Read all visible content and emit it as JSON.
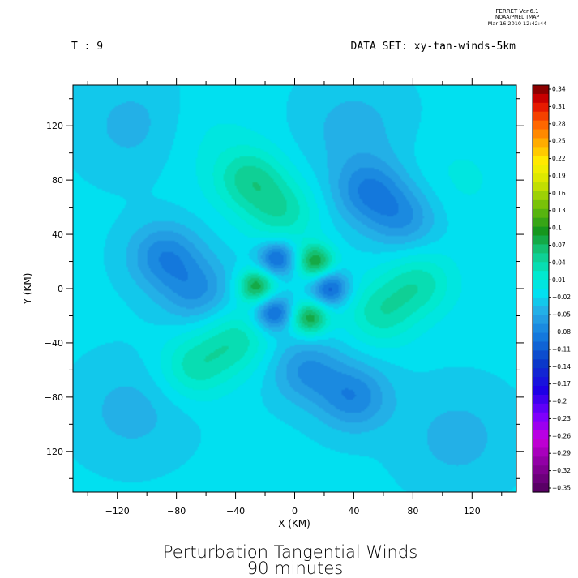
{
  "header": {
    "program": "FERRET  Ver.6.1",
    "org": "NOAA/PMEL TMAP",
    "timestamp": "Mar 16 2010 12:42:44",
    "time_label": "T : 9",
    "dataset_label": "DATA SET: xy-tan-winds-5km"
  },
  "chart_data": {
    "type": "heatmap",
    "title": "Perturbation Tangential Winds",
    "subtitle": "90 minutes",
    "xlabel": "X (KM)",
    "ylabel": "Y (KM)",
    "xlim": [
      -150,
      150
    ],
    "ylim": [
      -150,
      150
    ],
    "x_ticks": [
      -120,
      -80,
      -40,
      0,
      40,
      80,
      120
    ],
    "y_ticks": [
      120,
      80,
      40,
      0,
      -40,
      -80,
      -120
    ],
    "colorbar": {
      "range": [
        -0.35,
        0.35
      ],
      "labels": [
        "0.34",
        "0.31",
        "0.28",
        "0.25",
        "0.22",
        "0.19",
        "0.16",
        "0.13",
        "0.1",
        "0.07",
        "0.04",
        "0.01",
        "-0.02",
        "-0.05",
        "-0.08",
        "-0.11",
        "-0.14",
        "-0.17",
        "-0.2",
        "-0.23",
        "-0.26",
        "-0.29",
        "-0.32",
        "-0.35"
      ]
    },
    "features": [
      {
        "x": -26,
        "y": 2,
        "value": 0.1
      },
      {
        "x": 14,
        "y": 20,
        "value": 0.1
      },
      {
        "x": 10,
        "y": -22,
        "value": 0.1
      },
      {
        "x": -12,
        "y": 22,
        "value": -0.09
      },
      {
        "x": 24,
        "y": 0,
        "value": -0.09
      },
      {
        "x": -14,
        "y": -18,
        "value": -0.09
      },
      {
        "x": -30,
        "y": 80,
        "value": 0.06
      },
      {
        "x": -8,
        "y": 56,
        "value": 0.05
      },
      {
        "x": 50,
        "y": 72,
        "value": -0.06
      },
      {
        "x": 74,
        "y": 52,
        "value": -0.05
      },
      {
        "x": 58,
        "y": -18,
        "value": 0.05
      },
      {
        "x": 84,
        "y": 4,
        "value": 0.05
      },
      {
        "x": 40,
        "y": -80,
        "value": -0.06
      },
      {
        "x": 8,
        "y": -60,
        "value": -0.05
      },
      {
        "x": -68,
        "y": -58,
        "value": 0.05
      },
      {
        "x": -40,
        "y": -38,
        "value": 0.05
      },
      {
        "x": -88,
        "y": 24,
        "value": -0.06
      },
      {
        "x": -66,
        "y": -2,
        "value": -0.05
      },
      {
        "x": -108,
        "y": 120,
        "value": -0.025
      },
      {
        "x": 40,
        "y": 118,
        "value": -0.025
      },
      {
        "x": 110,
        "y": -110,
        "value": -0.025
      },
      {
        "x": -60,
        "y": 110,
        "value": 0.015
      },
      {
        "x": 110,
        "y": 80,
        "value": 0.015
      },
      {
        "x": -110,
        "y": -90,
        "value": -0.025
      }
    ]
  }
}
